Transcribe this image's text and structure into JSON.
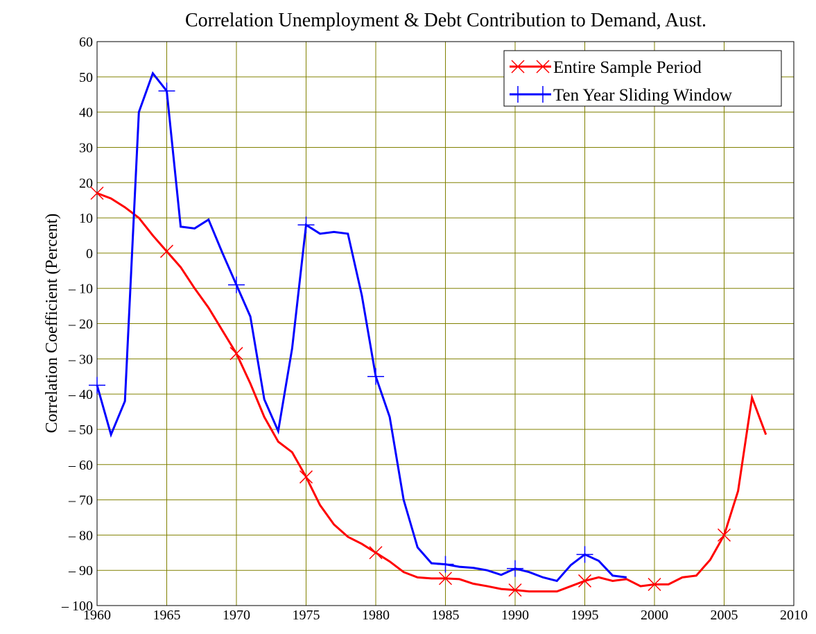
{
  "chart_data": {
    "type": "line",
    "title": "Correlation Unemployment & Debt Contribution to Demand, Aust.",
    "ylabel": "Correlation Coefficient (Percent)",
    "xlim": [
      1960,
      2010
    ],
    "xticks": [
      1960,
      1965,
      1970,
      1975,
      1980,
      1985,
      1990,
      1995,
      2000,
      2005,
      2010
    ],
    "ylim": [
      -100,
      60
    ],
    "yticks": [
      {
        "value": -100,
        "label": "– 100"
      },
      {
        "value": -90,
        "label": "– 90"
      },
      {
        "value": -80,
        "label": "– 80"
      },
      {
        "value": -70,
        "label": "– 70"
      },
      {
        "value": -60,
        "label": "– 60"
      },
      {
        "value": -50,
        "label": "– 50"
      },
      {
        "value": -40,
        "label": "– 40"
      },
      {
        "value": -30,
        "label": "– 30"
      },
      {
        "value": -20,
        "label": "– 20"
      },
      {
        "value": -10,
        "label": "– 10"
      },
      0,
      10,
      20,
      30,
      40,
      50,
      60
    ],
    "grid": true,
    "legend": "upper right",
    "series": [
      {
        "name": "Entire Sample Period",
        "color": "#ff0000",
        "marker": "x",
        "x": [
          1960,
          1961,
          1962,
          1963,
          1964,
          1965,
          1966,
          1967,
          1968,
          1969,
          1970,
          1971,
          1972,
          1973,
          1974,
          1975,
          1976,
          1977,
          1978,
          1979,
          1980,
          1981,
          1982,
          1983,
          1984,
          1985,
          1986,
          1987,
          1988,
          1989,
          1990,
          1991,
          1992,
          1993,
          1994,
          1995,
          1996,
          1997,
          1998,
          1999,
          2000,
          2001,
          2002,
          2003,
          2004,
          2005,
          2006,
          2007,
          2008
        ],
        "values": [
          17,
          15.5,
          13,
          10,
          5,
          0.5,
          -4,
          -10,
          -15.5,
          -22,
          -28.5,
          -37,
          -46.5,
          -53.5,
          -56.5,
          -63.5,
          -71.5,
          -77,
          -80.5,
          -82.5,
          -85,
          -87.5,
          -90.5,
          -92,
          -92.3,
          -92.3,
          -92.5,
          -93.8,
          -94.5,
          -95.3,
          -95.6,
          -96,
          -96,
          -96,
          -94.5,
          -93,
          -92,
          -93,
          -92.5,
          -94.5,
          -94,
          -94,
          -92,
          -91.5,
          -87,
          -80,
          -67.5,
          -41,
          -51.5
        ]
      },
      {
        "name": "Ten Year Sliding Window",
        "color": "#0000ff",
        "marker": "+",
        "x": [
          1960,
          1961,
          1962,
          1963,
          1964,
          1965,
          1966,
          1967,
          1968,
          1969,
          1970,
          1971,
          1972,
          1973,
          1974,
          1975,
          1976,
          1977,
          1978,
          1979,
          1980,
          1981,
          1982,
          1983,
          1984,
          1985,
          1986,
          1987,
          1988,
          1989,
          1990,
          1991,
          1992,
          1993,
          1994,
          1995,
          1996,
          1997,
          1998
        ],
        "values": [
          -37.5,
          -51.5,
          -42,
          40,
          51,
          46,
          7.5,
          7,
          9.5,
          0,
          -9,
          -18,
          -41.5,
          -50.5,
          -27,
          8,
          5.5,
          6,
          5.5,
          -12,
          -35,
          -46.5,
          -70,
          -83.5,
          -88,
          -88.3,
          -89,
          -89.3,
          -90,
          -91.3,
          -89.5,
          -90.5,
          -92,
          -93,
          -88.5,
          -85.5,
          -87.3,
          -91.5,
          -92
        ]
      }
    ]
  }
}
